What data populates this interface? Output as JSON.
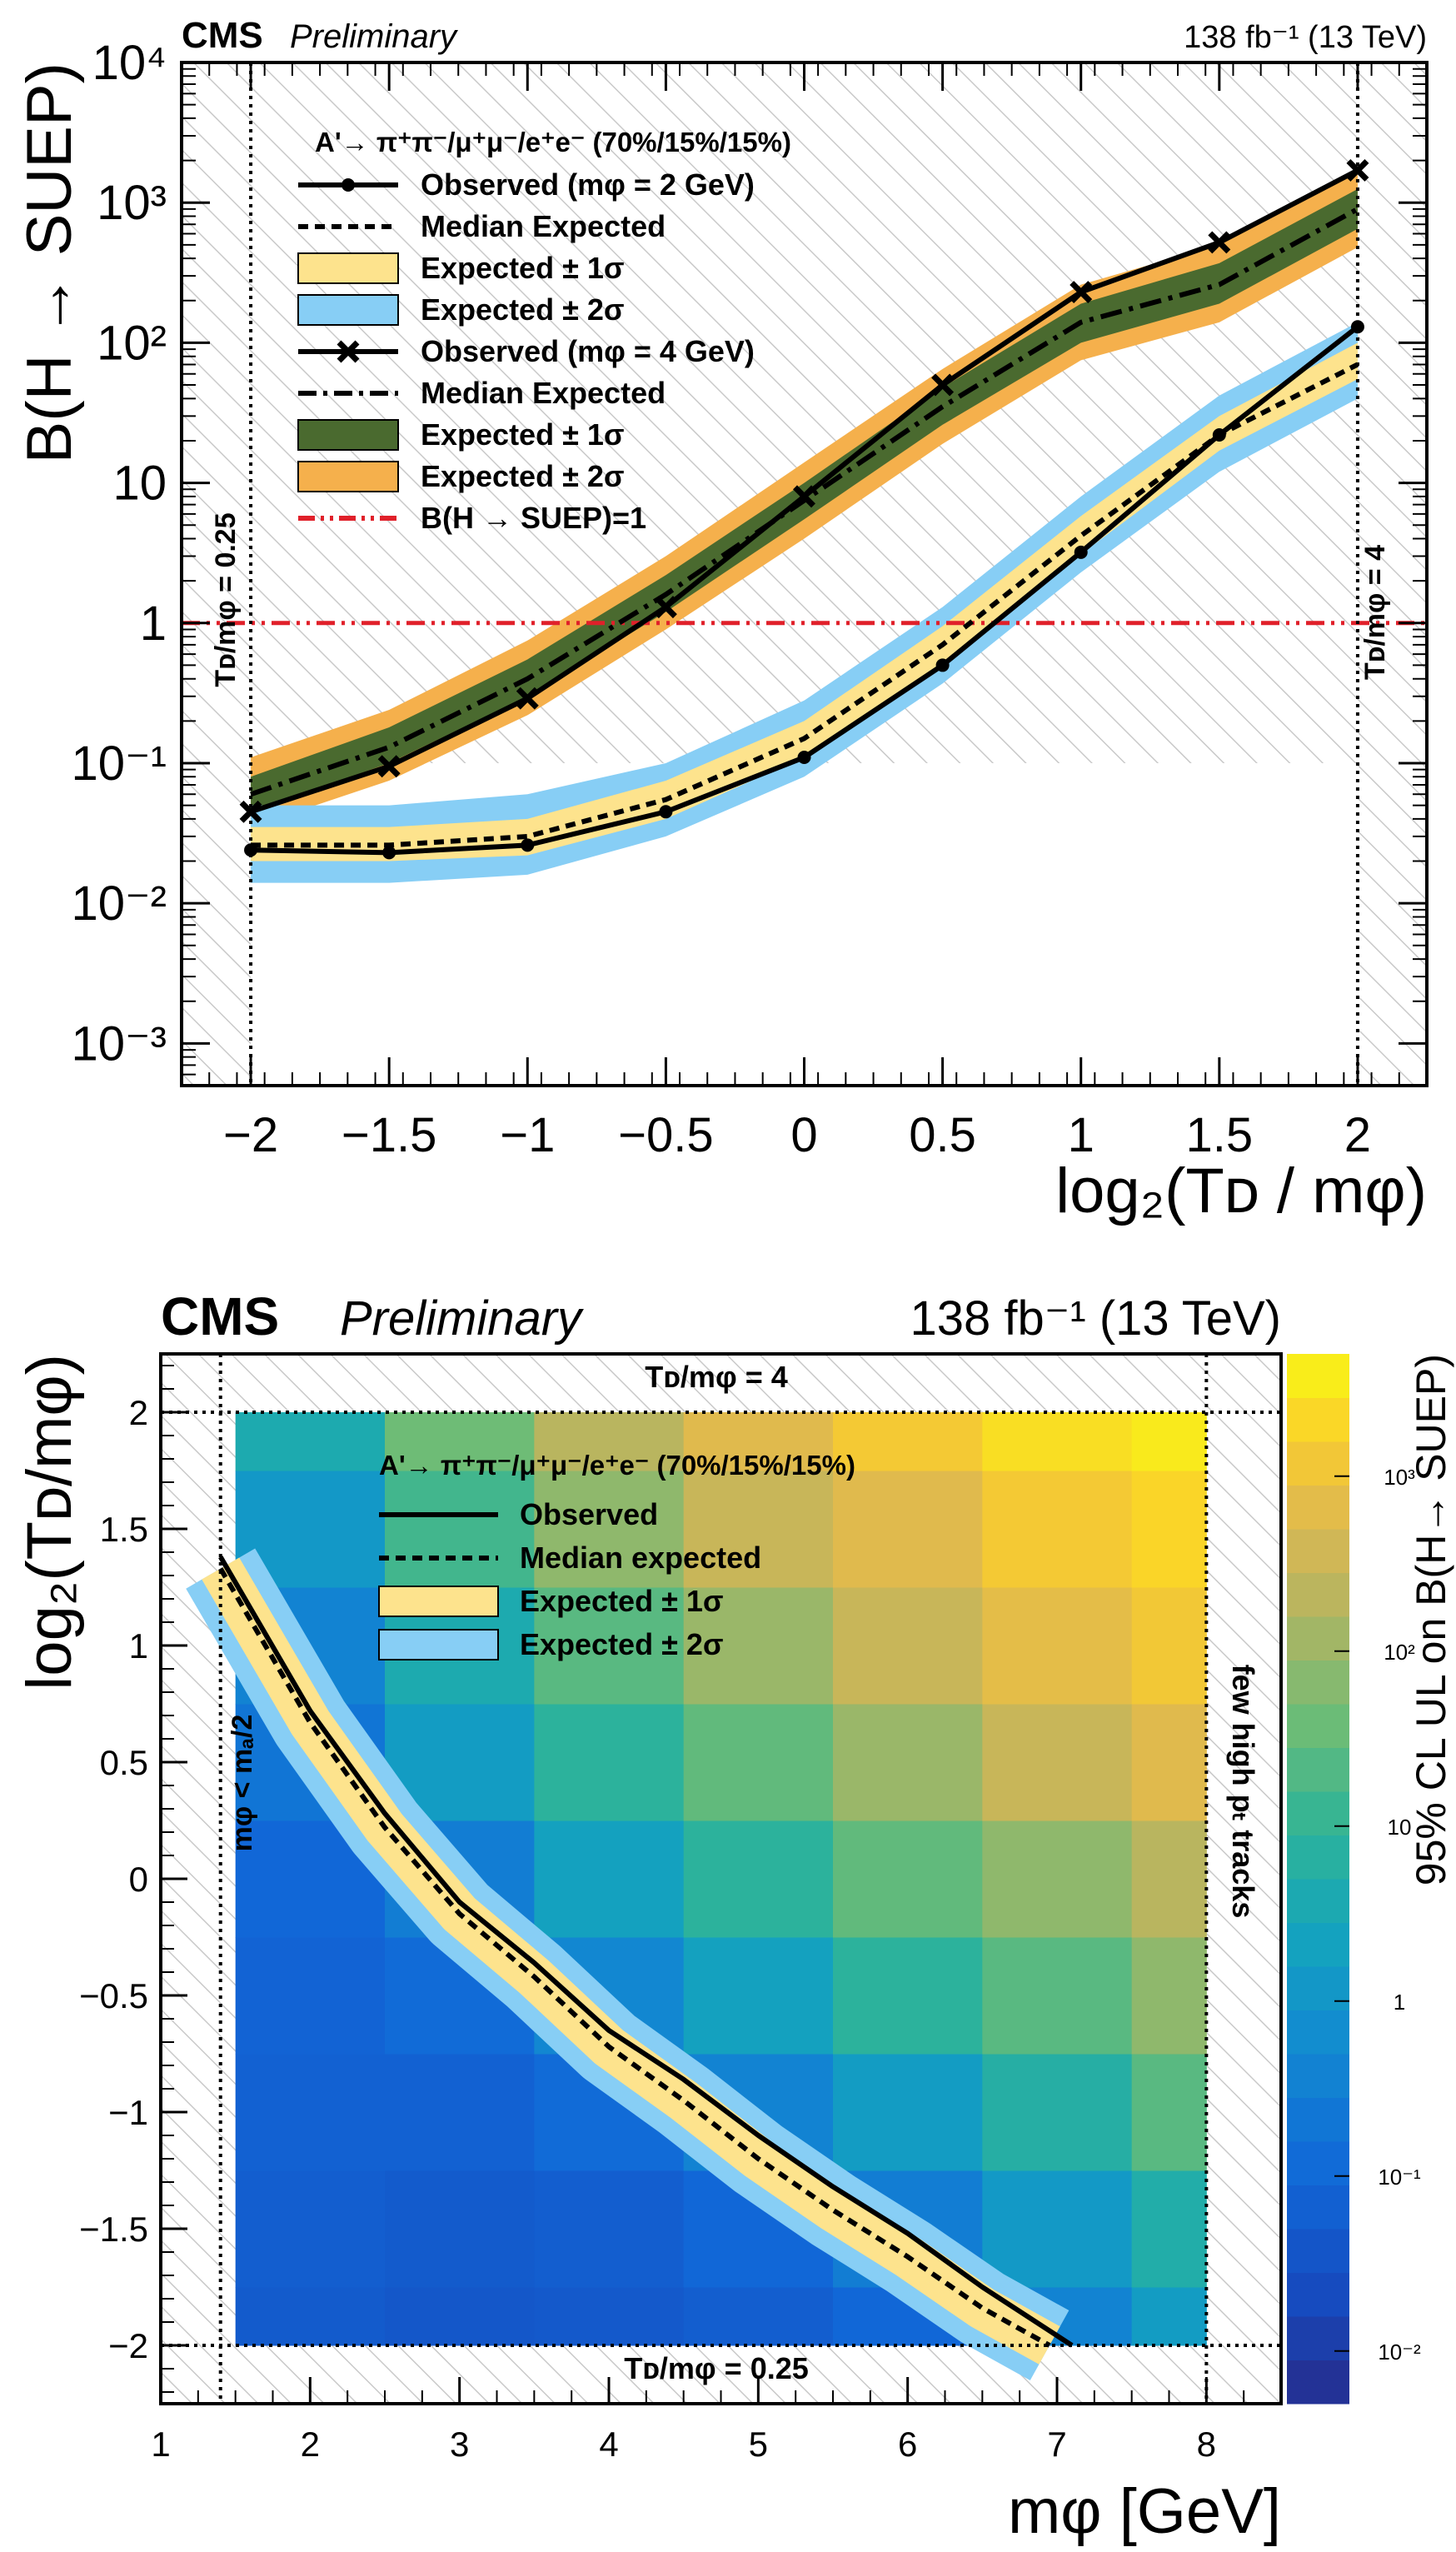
{
  "chart_data": [
    {
      "type": "line",
      "header": {
        "cms": "CMS",
        "preliminary": "Preliminary",
        "lumi": "138 fb⁻¹ (13 TeV)"
      },
      "xlabel": "log₂(Tᴅ / mφ)",
      "ylabel": "B(H → SUEP)",
      "xlim": [
        -2.25,
        2.25
      ],
      "ylim": [
        0.0005,
        10000
      ],
      "yscale": "log",
      "xticks": [
        "−2",
        "−1.5",
        "−1",
        "−0.5",
        "0",
        "0.5",
        "1",
        "1.5",
        "2"
      ],
      "yticks": [
        "10⁻³",
        "10⁻²",
        "10⁻¹",
        "1",
        "10",
        "10²",
        "10³",
        "10⁴"
      ],
      "x": [
        -2,
        -1.5,
        -1,
        -0.5,
        0,
        0.5,
        1,
        1.5,
        2
      ],
      "series": [
        {
          "name": "Observed (mφ = 2 GeV)",
          "values": [
            0.024,
            0.023,
            0.026,
            0.045,
            0.11,
            0.5,
            3.2,
            22,
            130
          ]
        },
        {
          "name": "Median Expected",
          "values": [
            0.026,
            0.026,
            0.03,
            0.055,
            0.15,
            0.7,
            4.2,
            22,
            70
          ],
          "band1": [
            [
              0.02,
              0.035
            ],
            [
              0.02,
              0.035
            ],
            [
              0.022,
              0.04
            ],
            [
              0.04,
              0.075
            ],
            [
              0.11,
              0.2
            ],
            [
              0.5,
              0.95
            ],
            [
              3.1,
              5.8
            ],
            [
              17,
              30
            ],
            [
              55,
              100
            ]
          ],
          "band2": [
            [
              0.014,
              0.05
            ],
            [
              0.014,
              0.05
            ],
            [
              0.016,
              0.06
            ],
            [
              0.03,
              0.1
            ],
            [
              0.08,
              0.28
            ],
            [
              0.37,
              1.3
            ],
            [
              2.3,
              8
            ],
            [
              12,
              42
            ],
            [
              40,
              140
            ]
          ]
        },
        {
          "name": "Observed (mφ = 4 GeV)",
          "values": [
            0.045,
            0.095,
            0.29,
            1.3,
            8,
            50,
            230,
            520,
            1700
          ]
        },
        {
          "name": "Median Expected",
          "values": [
            0.06,
            0.13,
            0.4,
            1.6,
            7.5,
            35,
            140,
            260,
            900
          ],
          "band1": [
            [
              0.045,
              0.08
            ],
            [
              0.1,
              0.18
            ],
            [
              0.3,
              0.55
            ],
            [
              1.2,
              2.2
            ],
            [
              5.5,
              10
            ],
            [
              26,
              48
            ],
            [
              100,
              190
            ],
            [
              190,
              370
            ],
            [
              650,
              1250
            ]
          ],
          "band2": [
            [
              0.035,
              0.11
            ],
            [
              0.075,
              0.24
            ],
            [
              0.22,
              0.75
            ],
            [
              0.9,
              3
            ],
            [
              4,
              14
            ],
            [
              19,
              65
            ],
            [
              75,
              260
            ],
            [
              140,
              500
            ],
            [
              480,
              1700
            ]
          ]
        },
        {
          "name": "B(H → SUEP)=1",
          "values": [
            1,
            1,
            1,
            1,
            1,
            1,
            1,
            1,
            1
          ]
        }
      ],
      "legend_header": "A'→ π⁺π⁻/μ⁺μ⁻/e⁺e⁻ (70%/15%/15%)",
      "legend": [
        "Observed (mφ = 2 GeV)",
        "Median Expected",
        "Expected ± 1σ",
        "Expected ± 2σ",
        "Observed (mφ = 4 GeV)",
        "Median Expected",
        "Expected ± 1σ",
        "Expected ± 2σ",
        "B(H → SUEP)=1"
      ],
      "legend_position": "top-left",
      "annotations": {
        "left": "Tᴅ/mφ = 0.25",
        "right": "Tᴅ/mφ = 4"
      },
      "hatched_region": "0.75 < log₂(Tᴅ/mφ) above expected region",
      "colors": {
        "observed": "#000000",
        "band1_light": "#fde38d",
        "band2_light": "#87cef5",
        "band1_dark": "#4a6a2f",
        "band2_dark": "#f5b04c",
        "ref_line": "#e0202a"
      }
    },
    {
      "type": "heatmap",
      "header": {
        "cms": "CMS",
        "preliminary": "Preliminary",
        "lumi": "138 fb⁻¹ (13 TeV)"
      },
      "xlabel": "mφ [GeV]",
      "ylabel": "log₂(Tᴅ/mφ)",
      "zlabel": "95% CL UL on B(H→ SUEP)",
      "xlim": [
        1,
        8.5
      ],
      "ylim": [
        -2.25,
        2.25
      ],
      "xticks": [
        "1",
        "2",
        "3",
        "4",
        "5",
        "6",
        "7",
        "8"
      ],
      "yticks": [
        "−2",
        "−1.5",
        "−1",
        "−0.5",
        "0",
        "0.5",
        "1",
        "1.5",
        "2"
      ],
      "zticks": [
        "10⁻²",
        "10⁻¹",
        "1",
        "10",
        "10²",
        "10³"
      ],
      "zlim": [
        0.005,
        5000
      ],
      "x_bins": [
        1.5,
        2.5,
        3.5,
        4.5,
        5.5,
        6.5,
        7.5,
        8
      ],
      "y_bins": [
        -2,
        -1.75,
        -1.25,
        -0.75,
        -0.25,
        0.25,
        0.75,
        1.25,
        1.75,
        2
      ],
      "z": [
        [
          0.05,
          0.04,
          0.045,
          0.06,
          0.1,
          0.4,
          1.5
        ],
        [
          0.06,
          0.05,
          0.06,
          0.1,
          0.3,
          1.3,
          5
        ],
        [
          0.07,
          0.07,
          0.12,
          0.4,
          1.5,
          6,
          25
        ],
        [
          0.08,
          0.12,
          0.5,
          2,
          8,
          25,
          80
        ],
        [
          0.1,
          0.3,
          2,
          8,
          30,
          80,
          200
        ],
        [
          0.2,
          1.5,
          8,
          30,
          100,
          300,
          600
        ],
        [
          0.4,
          4,
          25,
          100,
          300,
          700,
          1200
        ],
        [
          1.2,
          15,
          80,
          300,
          600,
          1300,
          2000
        ],
        [
          4,
          40,
          200,
          600,
          1300,
          2500,
          3500
        ]
      ],
      "contours": {
        "observed": {
          "x": [
            1.4,
            2,
            2.5,
            3,
            3.5,
            4,
            4.5,
            5,
            5.5,
            6,
            6.5,
            7.1
          ],
          "y": [
            1.38,
            0.72,
            0.28,
            -0.1,
            -0.36,
            -0.65,
            -0.86,
            -1.1,
            -1.32,
            -1.52,
            -1.75,
            -2
          ]
        },
        "expected": {
          "x": [
            1.4,
            2,
            2.5,
            3,
            3.5,
            4,
            4.5,
            5,
            5.5,
            6,
            6.5,
            6.95
          ],
          "y": [
            1.33,
            0.67,
            0.22,
            -0.15,
            -0.42,
            -0.72,
            -0.95,
            -1.2,
            -1.42,
            -1.62,
            -1.84,
            -2
          ]
        }
      },
      "legend_header": "A'→ π⁺π⁻/μ⁺μ⁻/e⁺e⁻ (70%/15%/15%)",
      "legend": [
        "Observed",
        "Median expected",
        "Expected ± 1σ",
        "Expected ± 2σ"
      ],
      "legend_position": "top-left",
      "annotations": {
        "top": "Tᴅ/mφ = 4",
        "bottom": "Tᴅ/mφ = 0.25",
        "left": "mφ < mₐ/2",
        "right": "few high pₜ tracks"
      }
    }
  ]
}
